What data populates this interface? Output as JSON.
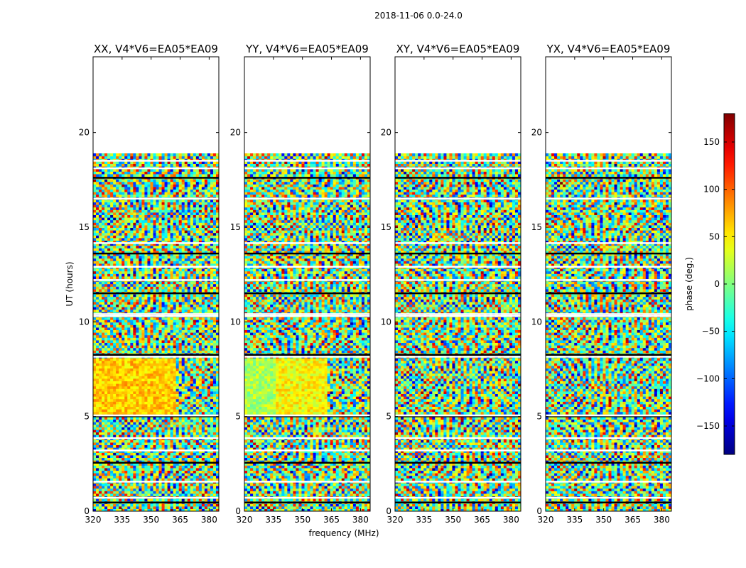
{
  "suptitle": "2018-11-06 0.0-24.0",
  "xlabel": "frequency (MHz)",
  "ylabel": "UT (hours)",
  "colorbar": {
    "label": "phase (deg.)",
    "range": [
      -180,
      180
    ],
    "ticks": [
      -150,
      -100,
      -50,
      0,
      50,
      100,
      150
    ],
    "tick_labels": [
      "−150",
      "−100",
      "−50",
      "0",
      "50",
      "100",
      "150"
    ],
    "colormap": "jet"
  },
  "chart_data": {
    "type": "heatmap",
    "xlim": [
      320,
      385
    ],
    "ylim": [
      0,
      24
    ],
    "xticks": [
      320,
      335,
      350,
      365,
      380
    ],
    "yticks": [
      0,
      5,
      10,
      15,
      20
    ],
    "data_extent_hours": [
      0,
      18.9
    ],
    "panels": [
      {
        "title": "XX, V4*V6=EA05*EA09",
        "pol": "XX"
      },
      {
        "title": "YY, V4*V6=EA05*EA09",
        "pol": "YY"
      },
      {
        "title": "XY, V4*V6=EA05*EA09",
        "pol": "XY"
      },
      {
        "title": "YX, V4*V6=EA05*EA09",
        "pol": "YX"
      }
    ]
  }
}
